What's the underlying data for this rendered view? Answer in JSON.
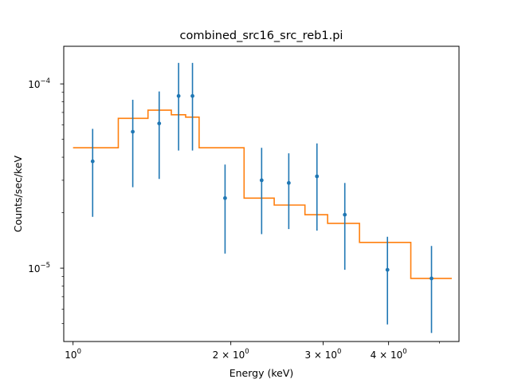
{
  "chart_data": {
    "type": "scatter",
    "title": "combined_src16_src_reb1.pi",
    "xlabel": "Energy (keV)",
    "ylabel": "Counts/sec/keV",
    "x_scale": "log",
    "y_scale": "log",
    "xlim": [
      0.96,
      5.45
    ],
    "ylim": [
      4e-06,
      0.00016
    ],
    "x_major_ticks": [
      {
        "value": 1,
        "base": "10",
        "exp": "0"
      },
      {
        "value": 2,
        "base": "2 × 10",
        "exp": "0"
      },
      {
        "value": 3,
        "base": "3 × 10",
        "exp": "0"
      },
      {
        "value": 4,
        "base": "4 × 10",
        "exp": "0"
      }
    ],
    "x_minor_ticks": [
      5
    ],
    "y_major_ticks": [
      {
        "value": 0.0001,
        "base": "10",
        "exp": "−4"
      },
      {
        "value": 1e-05,
        "base": "10",
        "exp": "−5"
      }
    ],
    "y_minor_ticks": [
      5e-06,
      6e-06,
      7e-06,
      8e-06,
      9e-06,
      2e-05,
      3e-05,
      4e-05,
      5e-05,
      6e-05,
      7e-05,
      8e-05,
      9e-05
    ],
    "series": [
      {
        "kind": "data_points",
        "color": "#1f77b4",
        "points": [
          {
            "x": 1.09,
            "y": 3.8e-05,
            "ylo": 1.9e-05,
            "yhi": 5.7e-05
          },
          {
            "x": 1.3,
            "y": 5.5e-05,
            "ylo": 2.75e-05,
            "yhi": 8.2e-05
          },
          {
            "x": 1.46,
            "y": 6.1e-05,
            "ylo": 3.05e-05,
            "yhi": 9.1e-05
          },
          {
            "x": 1.59,
            "y": 8.6e-05,
            "ylo": 4.35e-05,
            "yhi": 0.00013
          },
          {
            "x": 1.69,
            "y": 8.6e-05,
            "ylo": 4.35e-05,
            "yhi": 0.00013
          },
          {
            "x": 1.95,
            "y": 2.4e-05,
            "ylo": 1.2e-05,
            "yhi": 3.65e-05
          },
          {
            "x": 2.29,
            "y": 3e-05,
            "ylo": 1.53e-05,
            "yhi": 4.5e-05
          },
          {
            "x": 2.58,
            "y": 2.9e-05,
            "ylo": 1.63e-05,
            "yhi": 4.2e-05
          },
          {
            "x": 2.92,
            "y": 3.15e-05,
            "ylo": 1.6e-05,
            "yhi": 4.75e-05
          },
          {
            "x": 3.3,
            "y": 1.95e-05,
            "ylo": 9.8e-06,
            "yhi": 2.9e-05
          },
          {
            "x": 3.98,
            "y": 9.8e-06,
            "ylo": 4.95e-06,
            "yhi": 1.48e-05
          },
          {
            "x": 4.83,
            "y": 8.8e-06,
            "ylo": 4.45e-06,
            "yhi": 1.32e-05
          }
        ]
      },
      {
        "kind": "model_step",
        "color": "#ff7f0e",
        "steps": [
          {
            "x0": 1.0,
            "x1": 1.22,
            "y": 4.5e-05
          },
          {
            "x0": 1.22,
            "x1": 1.39,
            "y": 6.5e-05
          },
          {
            "x0": 1.39,
            "x1": 1.54,
            "y": 7.2e-05
          },
          {
            "x0": 1.54,
            "x1": 1.64,
            "y": 6.8e-05
          },
          {
            "x0": 1.64,
            "x1": 1.74,
            "y": 6.6e-05
          },
          {
            "x0": 1.74,
            "x1": 2.12,
            "y": 4.5e-05
          },
          {
            "x0": 2.12,
            "x1": 2.42,
            "y": 2.4e-05
          },
          {
            "x0": 2.42,
            "x1": 2.77,
            "y": 2.2e-05
          },
          {
            "x0": 2.77,
            "x1": 3.06,
            "y": 1.95e-05
          },
          {
            "x0": 3.06,
            "x1": 3.52,
            "y": 1.75e-05
          },
          {
            "x0": 3.52,
            "x1": 4.41,
            "y": 1.38e-05
          },
          {
            "x0": 4.41,
            "x1": 5.28,
            "y": 8.8e-06
          }
        ]
      }
    ]
  }
}
